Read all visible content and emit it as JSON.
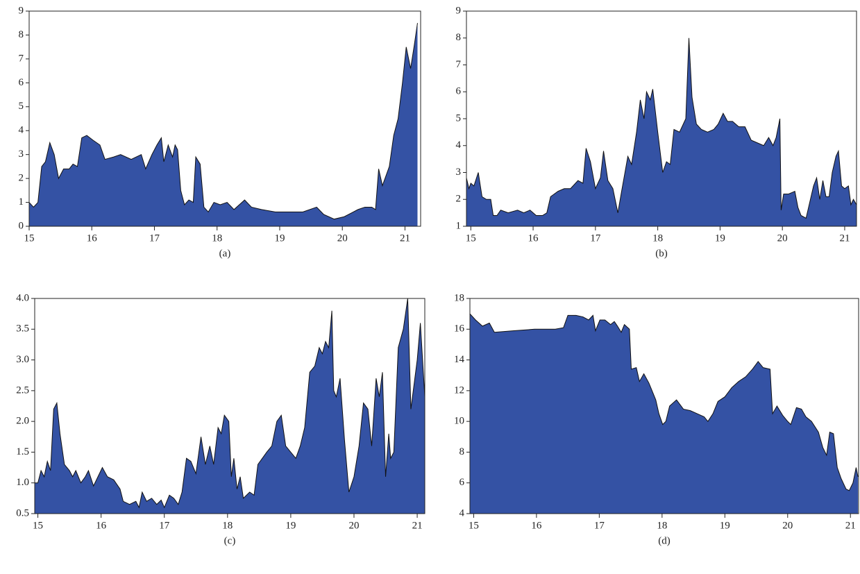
{
  "chart_data": [
    {
      "type": "area",
      "caption": "(a)",
      "color": "#3452a4",
      "xlim": [
        15,
        21.25
      ],
      "ylim": [
        0,
        9
      ],
      "xticks": [
        15,
        16,
        17,
        18,
        19,
        20,
        21
      ],
      "yticks": [
        0,
        1,
        2,
        3,
        4,
        5,
        6,
        7,
        8,
        9
      ],
      "x": [
        15.0,
        15.07,
        15.14,
        15.2,
        15.26,
        15.33,
        15.4,
        15.47,
        15.55,
        15.64,
        15.7,
        15.77,
        15.84,
        15.92,
        16.02,
        16.13,
        16.21,
        16.35,
        16.46,
        16.63,
        16.79,
        16.86,
        16.96,
        17.04,
        17.11,
        17.15,
        17.22,
        17.29,
        17.33,
        17.37,
        17.42,
        17.48,
        17.55,
        17.62,
        17.66,
        17.73,
        17.79,
        17.86,
        17.95,
        18.05,
        18.16,
        18.27,
        18.44,
        18.55,
        18.71,
        18.93,
        19.15,
        19.37,
        19.59,
        19.7,
        19.87,
        20.03,
        20.25,
        20.36,
        20.47,
        20.53,
        20.58,
        20.64,
        20.75,
        20.82,
        20.89,
        20.96,
        21.02,
        21.09,
        21.15,
        21.2
      ],
      "values": [
        1.0,
        0.8,
        1.0,
        2.5,
        2.7,
        3.5,
        3.0,
        2.0,
        2.4,
        2.4,
        2.6,
        2.5,
        3.7,
        3.8,
        3.6,
        3.4,
        2.8,
        2.9,
        3.0,
        2.8,
        3.0,
        2.4,
        3.0,
        3.4,
        3.7,
        2.7,
        3.4,
        2.9,
        3.4,
        3.2,
        1.5,
        0.9,
        1.1,
        1.0,
        2.9,
        2.6,
        0.8,
        0.6,
        1.0,
        0.9,
        1.0,
        0.7,
        1.1,
        0.8,
        0.7,
        0.6,
        0.6,
        0.6,
        0.8,
        0.5,
        0.3,
        0.4,
        0.7,
        0.8,
        0.8,
        0.7,
        2.4,
        1.7,
        2.5,
        3.8,
        4.5,
        6.0,
        7.5,
        6.6,
        7.6,
        8.5
      ]
    },
    {
      "type": "area",
      "caption": "(b)",
      "color": "#3452a4",
      "xlim": [
        14.93,
        21.19
      ],
      "ylim": [
        1,
        9
      ],
      "xticks": [
        15,
        16,
        17,
        18,
        19,
        20,
        21
      ],
      "yticks": [
        1,
        2,
        3,
        4,
        5,
        6,
        7,
        8,
        9
      ],
      "x": [
        14.93,
        14.97,
        15.0,
        15.05,
        15.12,
        15.18,
        15.25,
        15.32,
        15.36,
        15.42,
        15.48,
        15.6,
        15.75,
        15.85,
        15.95,
        16.05,
        16.15,
        16.22,
        16.28,
        16.4,
        16.5,
        16.6,
        16.72,
        16.8,
        16.85,
        16.92,
        17.0,
        17.08,
        17.13,
        17.2,
        17.28,
        17.36,
        17.42,
        17.52,
        17.58,
        17.66,
        17.72,
        17.78,
        17.82,
        17.88,
        17.92,
        18.0,
        18.08,
        18.14,
        18.2,
        18.26,
        18.35,
        18.45,
        18.5,
        18.55,
        18.62,
        18.7,
        18.8,
        18.9,
        18.97,
        19.05,
        19.12,
        19.2,
        19.3,
        19.4,
        19.5,
        19.6,
        19.7,
        19.78,
        19.85,
        19.9,
        19.96,
        19.98,
        20.02,
        20.1,
        20.2,
        20.25,
        20.3,
        20.38,
        20.45,
        20.5,
        20.55,
        20.6,
        20.65,
        20.7,
        20.75,
        20.8,
        20.86,
        20.9,
        20.95,
        21.0,
        21.06,
        21.1,
        21.14,
        21.19
      ],
      "values": [
        2.8,
        2.4,
        2.6,
        2.5,
        3.0,
        2.1,
        2.0,
        2.0,
        1.4,
        1.4,
        1.6,
        1.5,
        1.6,
        1.5,
        1.6,
        1.4,
        1.4,
        1.5,
        2.1,
        2.3,
        2.4,
        2.4,
        2.7,
        2.6,
        3.9,
        3.4,
        2.4,
        2.8,
        3.8,
        2.7,
        2.4,
        1.5,
        2.3,
        3.6,
        3.3,
        4.5,
        5.7,
        5.0,
        6.0,
        5.7,
        6.1,
        4.5,
        3.0,
        3.4,
        3.3,
        4.6,
        4.5,
        5.0,
        8.0,
        5.8,
        4.8,
        4.6,
        4.5,
        4.6,
        4.8,
        5.2,
        4.9,
        4.9,
        4.7,
        4.7,
        4.2,
        4.1,
        4.0,
        4.3,
        4.0,
        4.3,
        5.0,
        1.6,
        2.2,
        2.2,
        2.3,
        1.7,
        1.4,
        1.3,
        2.0,
        2.5,
        2.8,
        2.0,
        2.7,
        2.1,
        2.1,
        3.0,
        3.6,
        3.8,
        2.5,
        2.4,
        2.5,
        1.8,
        2.0,
        1.8
      ]
    },
    {
      "type": "area",
      "caption": "(c)",
      "color": "#3452a4",
      "xlim": [
        14.95,
        21.12
      ],
      "ylim": [
        0.5,
        4
      ],
      "xticks": [
        15,
        16,
        17,
        18,
        19,
        20,
        21
      ],
      "yticks": [
        0.5,
        {
          "value": 1,
          "label": "1.0"
        },
        1.5,
        {
          "value": 2,
          "label": "2.0"
        },
        2.5,
        {
          "value": 3,
          "label": "3.0"
        },
        3.5,
        {
          "value": 4,
          "label": "4.0"
        }
      ],
      "x": [
        14.95,
        15.0,
        15.05,
        15.1,
        15.15,
        15.2,
        15.25,
        15.3,
        15.35,
        15.42,
        15.5,
        15.55,
        15.6,
        15.68,
        15.75,
        15.8,
        15.88,
        15.95,
        16.02,
        16.1,
        16.2,
        16.3,
        16.35,
        16.45,
        16.55,
        16.6,
        16.65,
        16.72,
        16.8,
        16.88,
        16.95,
        17.0,
        17.08,
        17.15,
        17.22,
        17.28,
        17.35,
        17.42,
        17.5,
        17.58,
        17.65,
        17.72,
        17.78,
        17.85,
        17.9,
        17.95,
        18.02,
        18.06,
        18.1,
        18.15,
        18.2,
        18.25,
        18.35,
        18.42,
        18.48,
        18.55,
        18.62,
        18.7,
        18.78,
        18.85,
        18.92,
        19.0,
        19.08,
        19.15,
        19.22,
        19.3,
        19.38,
        19.45,
        19.5,
        19.55,
        19.6,
        19.65,
        19.68,
        19.72,
        19.78,
        19.85,
        19.92,
        20.0,
        20.08,
        20.15,
        20.22,
        20.28,
        20.35,
        20.4,
        20.45,
        20.5,
        20.55,
        20.58,
        20.63,
        20.7,
        20.78,
        20.85,
        20.9,
        20.95,
        21.0,
        21.05,
        21.12
      ],
      "values": [
        1.0,
        1.0,
        1.2,
        1.1,
        1.35,
        1.2,
        2.2,
        2.3,
        1.8,
        1.3,
        1.2,
        1.1,
        1.2,
        1.0,
        1.1,
        1.2,
        0.95,
        1.1,
        1.25,
        1.1,
        1.05,
        0.9,
        0.7,
        0.65,
        0.7,
        0.6,
        0.85,
        0.7,
        0.75,
        0.65,
        0.72,
        0.6,
        0.8,
        0.75,
        0.65,
        0.85,
        1.4,
        1.35,
        1.15,
        1.75,
        1.3,
        1.6,
        1.3,
        1.9,
        1.8,
        2.1,
        2.0,
        1.1,
        1.4,
        0.9,
        1.1,
        0.75,
        0.85,
        0.8,
        1.3,
        1.4,
        1.5,
        1.6,
        2.0,
        2.1,
        1.6,
        1.5,
        1.4,
        1.6,
        1.9,
        2.8,
        2.9,
        3.2,
        3.1,
        3.3,
        3.2,
        3.8,
        2.5,
        2.4,
        2.7,
        1.7,
        0.85,
        1.1,
        1.6,
        2.3,
        2.2,
        1.6,
        2.7,
        2.4,
        2.8,
        1.1,
        1.8,
        1.4,
        1.5,
        3.2,
        3.5,
        4.0,
        2.2,
        2.6,
        3.0,
        3.6,
        2.4
      ]
    },
    {
      "type": "area",
      "caption": "(d)",
      "color": "#3452a4",
      "xlim": [
        14.94,
        21.13
      ],
      "ylim": [
        4,
        18
      ],
      "xticks": [
        15,
        16,
        17,
        18,
        19,
        20,
        21
      ],
      "yticks": [
        4,
        6,
        8,
        10,
        12,
        14,
        16,
        18
      ],
      "x": [
        14.94,
        15.03,
        15.14,
        15.25,
        15.33,
        15.64,
        15.97,
        16.3,
        16.43,
        16.5,
        16.63,
        16.74,
        16.83,
        16.9,
        16.94,
        17.01,
        17.09,
        17.18,
        17.24,
        17.29,
        17.35,
        17.4,
        17.48,
        17.51,
        17.59,
        17.64,
        17.71,
        17.79,
        17.84,
        17.9,
        17.95,
        18.01,
        18.06,
        18.12,
        18.23,
        18.34,
        18.45,
        18.56,
        18.67,
        18.73,
        18.81,
        18.89,
        19.0,
        19.11,
        19.22,
        19.33,
        19.44,
        19.53,
        19.61,
        19.72,
        19.76,
        19.83,
        19.92,
        20.0,
        20.05,
        20.14,
        20.22,
        20.29,
        20.38,
        20.49,
        20.56,
        20.62,
        20.67,
        20.73,
        20.79,
        20.85,
        20.93,
        20.98,
        21.04,
        21.09,
        21.12
      ],
      "values": [
        17.0,
        16.6,
        16.2,
        16.4,
        15.8,
        15.9,
        16.0,
        16.0,
        16.1,
        16.9,
        16.9,
        16.8,
        16.6,
        16.9,
        15.9,
        16.6,
        16.6,
        16.3,
        16.5,
        16.2,
        15.8,
        16.3,
        16.0,
        13.4,
        13.5,
        12.6,
        13.1,
        12.5,
        12.0,
        11.4,
        10.5,
        9.8,
        10.0,
        11.0,
        11.4,
        10.8,
        10.7,
        10.5,
        10.3,
        10.0,
        10.5,
        11.3,
        11.6,
        12.2,
        12.6,
        12.9,
        13.4,
        13.9,
        13.5,
        13.4,
        10.5,
        11.0,
        10.4,
        10.0,
        9.8,
        10.9,
        10.8,
        10.3,
        10.0,
        9.3,
        8.3,
        7.8,
        9.3,
        9.2,
        7.0,
        6.3,
        5.6,
        5.5,
        6.0,
        7.0,
        6.4
      ]
    }
  ]
}
